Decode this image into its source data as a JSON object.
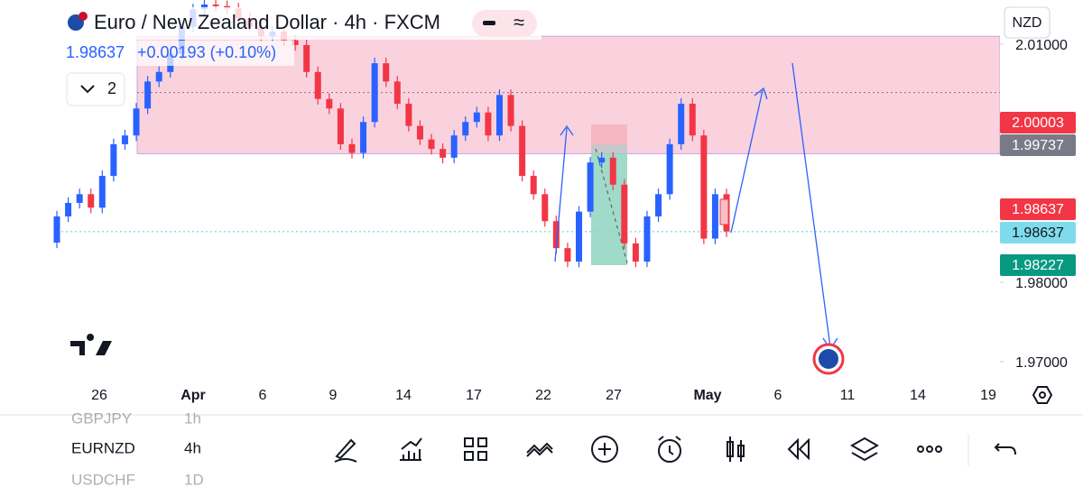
{
  "header": {
    "title": "Euro / New Zealand Dollar · 4h · FXCM",
    "price": "1.98637",
    "change": "+0.00193 (+0.10%)",
    "indicators": "2",
    "currency": "NZD"
  },
  "chart_data": {
    "type": "candlestick",
    "open": [
      1.985,
      1.9883,
      1.99,
      1.9911,
      1.9894,
      1.9934,
      1.9974,
      1.9985,
      2.0019,
      2.0053,
      2.0065,
      2.0088,
      2.0122,
      2.0144,
      2.015,
      2.0148,
      2.0145,
      2.0133,
      2.0122,
      2.011,
      2.0116,
      2.0105,
      2.0099,
      2.0065,
      2.0031,
      2.0019,
      1.9974,
      1.9963,
      2.0002,
      2.0076,
      2.0053,
      2.0025,
      1.9997,
      1.998,
      1.9968,
      1.9957,
      1.9985,
      2.0002,
      2.0014,
      1.9985,
      2.0036,
      1.9997,
      1.9934,
      1.9911,
      1.9877,
      1.9843,
      1.9826,
      1.9889,
      1.9951,
      1.9957,
      1.9923,
      1.9849,
      1.9826,
      1.9883,
      1.9911,
      1.9974,
      2.0025,
      1.9985,
      1.9855,
      1.9911
    ],
    "high": [
      1.989,
      1.9907,
      1.9918,
      1.9918,
      1.9941,
      1.9981,
      1.9992,
      2.0026,
      2.006,
      2.0072,
      2.0095,
      2.0129,
      2.0151,
      2.0157,
      2.0157,
      2.0155,
      2.0152,
      2.014,
      2.0129,
      2.0123,
      2.0123,
      2.0112,
      2.0106,
      2.0072,
      2.0038,
      2.0026,
      1.9981,
      2.0009,
      2.0083,
      2.0083,
      2.006,
      2.0032,
      2.0004,
      1.9987,
      1.9975,
      1.9992,
      2.0009,
      2.0021,
      2.0021,
      2.0043,
      2.0043,
      2.0004,
      1.9941,
      1.9918,
      1.9884,
      1.985,
      1.9896,
      1.9958,
      1.9964,
      1.9964,
      1.993,
      1.9856,
      1.989,
      1.9918,
      1.9981,
      2.0032,
      2.0032,
      1.9992,
      1.9918,
      1.9918
    ],
    "low": [
      1.9843,
      1.9876,
      1.9893,
      1.9887,
      1.9887,
      1.9927,
      1.9967,
      1.9978,
      2.0012,
      2.0046,
      2.0058,
      2.0081,
      2.0115,
      2.0137,
      2.0141,
      2.0138,
      2.0126,
      2.0115,
      2.0103,
      2.0103,
      2.0098,
      2.0092,
      2.0058,
      2.0024,
      2.0012,
      1.9967,
      1.9956,
      1.9956,
      1.9995,
      2.0046,
      2.0018,
      1.999,
      1.9973,
      1.9961,
      1.995,
      1.995,
      1.9978,
      1.9995,
      1.9978,
      1.9978,
      1.999,
      1.9927,
      1.9904,
      1.987,
      1.9836,
      1.9819,
      1.9819,
      1.9882,
      1.9944,
      1.9916,
      1.9842,
      1.9819,
      1.9819,
      1.9876,
      1.9904,
      1.9967,
      1.9978,
      1.9848,
      1.9848,
      1.9857
    ],
    "close": [
      1.9883,
      1.99,
      1.9911,
      1.9894,
      1.9934,
      1.9974,
      1.9985,
      2.0019,
      2.0053,
      2.0065,
      2.0088,
      2.0122,
      2.0144,
      2.015,
      2.0148,
      2.0145,
      2.0133,
      2.0122,
      2.011,
      2.0116,
      2.0105,
      2.0099,
      2.0065,
      2.0031,
      2.0019,
      1.9974,
      1.9963,
      2.0002,
      2.0076,
      2.0053,
      2.0025,
      1.9997,
      1.998,
      1.9968,
      1.9957,
      1.9985,
      2.0002,
      2.0014,
      1.9985,
      2.0036,
      1.9997,
      1.9934,
      1.9911,
      1.9877,
      1.9843,
      1.9826,
      1.9889,
      1.9951,
      1.9957,
      1.9923,
      1.9849,
      1.9826,
      1.9883,
      1.9911,
      1.9974,
      2.0025,
      1.9985,
      1.9855,
      1.9911,
      1.9864
    ],
    "up_color": "#2962ff",
    "down_color": "#f23645",
    "zone": {
      "top": 2.011,
      "bottom": 1.9962,
      "mid": 2.0039
    },
    "ylim": [
      1.96727,
      2.01557
    ],
    "yticks": [
      {
        "value": 2.01,
        "label": "2.01000"
      },
      {
        "value": 1.98,
        "label": "1.98000"
      },
      {
        "value": 1.97,
        "label": "1.97000"
      }
    ],
    "price_labels": [
      {
        "value": 2.00003,
        "label": "2.00003",
        "color": "#f23645"
      },
      {
        "value": 1.99737,
        "label": "1.99737",
        "color": "#787b86"
      },
      {
        "value": 1.98637,
        "label": "1.98637",
        "color": "#f23645"
      },
      {
        "value": 1.98637,
        "label": "1.98637",
        "color": "#7fdbeb"
      },
      {
        "value": 1.98227,
        "label": "1.98227",
        "color": "#089981"
      }
    ],
    "x_labels": [
      "26",
      "Apr",
      "6",
      "9",
      "14",
      "17",
      "22",
      "27",
      "May",
      "6",
      "11",
      "14",
      "19"
    ]
  },
  "watchlist": [
    [
      "GBPJPY",
      "1h"
    ],
    [
      "EURNZD",
      "4h"
    ],
    [
      "USDCHF",
      "1D"
    ]
  ]
}
